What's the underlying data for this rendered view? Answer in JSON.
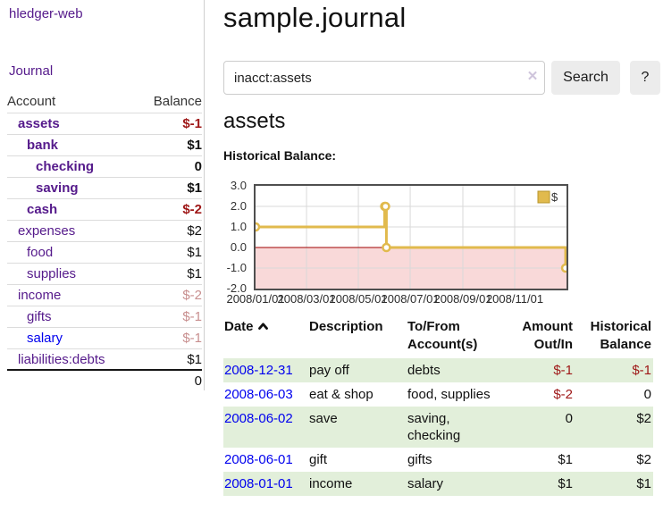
{
  "app": {
    "brand": "hledger-web",
    "nav_journal": "Journal"
  },
  "sidebar": {
    "col_account": "Account",
    "col_balance": "Balance",
    "accounts": [
      {
        "name": "assets",
        "balance": "$-1"
      },
      {
        "name": "bank",
        "balance": "$1"
      },
      {
        "name": "checking",
        "balance": "0"
      },
      {
        "name": "saving",
        "balance": "$1"
      },
      {
        "name": "cash",
        "balance": "$-2"
      },
      {
        "name": "expenses",
        "balance": "$2"
      },
      {
        "name": "food",
        "balance": "$1"
      },
      {
        "name": "supplies",
        "balance": "$1"
      },
      {
        "name": "income",
        "balance": "$-2"
      },
      {
        "name": "gifts",
        "balance": "$-1"
      },
      {
        "name": "salary",
        "balance": "$-1"
      },
      {
        "name": "liabilities:debts",
        "balance": "$1"
      }
    ],
    "total": "0"
  },
  "main": {
    "title": "sample.journal",
    "search": {
      "value": "inacct:assets",
      "clear_label": "✕",
      "button_label": "Search",
      "help_label": "?"
    },
    "account_heading": "assets",
    "chart_label": "Historical Balance:"
  },
  "chart_data": {
    "type": "line",
    "title": "Historical Balance",
    "step": "after",
    "series": [
      {
        "name": "$",
        "points": [
          {
            "date": "2008-01-01",
            "day": 0,
            "value": 1
          },
          {
            "date": "2008-06-01",
            "day": 152,
            "value": 2
          },
          {
            "date": "2008-06-02",
            "day": 153,
            "value": 2
          },
          {
            "date": "2008-06-03",
            "day": 154,
            "value": 0
          },
          {
            "date": "2008-12-31",
            "day": 365,
            "value": -1
          }
        ]
      }
    ],
    "x_ticks": [
      {
        "label": "2008/01/01",
        "day": 0
      },
      {
        "label": "2008/03/01",
        "day": 60
      },
      {
        "label": "2008/05/01",
        "day": 121
      },
      {
        "label": "2008/07/01",
        "day": 182
      },
      {
        "label": "2008/09/01",
        "day": 244
      },
      {
        "label": "2008/11/01",
        "day": 305
      }
    ],
    "y_ticks": [
      "3.0",
      "2.0",
      "1.0",
      "0.0",
      "-1.0",
      "-2.0"
    ],
    "ylim": [
      -2,
      3
    ],
    "xlim_days": [
      0,
      366
    ],
    "legend_position": "top-right",
    "grid": true,
    "colors": {
      "line": "#e1ba4d",
      "marker_fill": "#ffffff",
      "legend_border": "#b8952c",
      "negative_region": "#f9d9d9",
      "zero_line": "#a00000",
      "grid": "#d9d9d9",
      "text": "#333333"
    }
  },
  "register": {
    "headers": {
      "date": "Date",
      "description": "Description",
      "accounts": "To/From Account(s)",
      "amount": "Amount Out/In",
      "balance": "Historical Balance"
    },
    "rows": [
      {
        "date": "2008-12-31",
        "description": "pay off",
        "accounts": "debts",
        "amount": "$-1",
        "balance": "$-1"
      },
      {
        "date": "2008-06-03",
        "description": "eat & shop",
        "accounts": "food, supplies",
        "amount": "$-2",
        "balance": "0"
      },
      {
        "date": "2008-06-02",
        "description": "save",
        "accounts": "saving, checking",
        "amount": "0",
        "balance": "$2"
      },
      {
        "date": "2008-06-01",
        "description": "gift",
        "accounts": "gifts",
        "amount": "$1",
        "balance": "$2"
      },
      {
        "date": "2008-01-01",
        "description": "income",
        "accounts": "salary",
        "amount": "$1",
        "balance": "$1"
      }
    ]
  }
}
